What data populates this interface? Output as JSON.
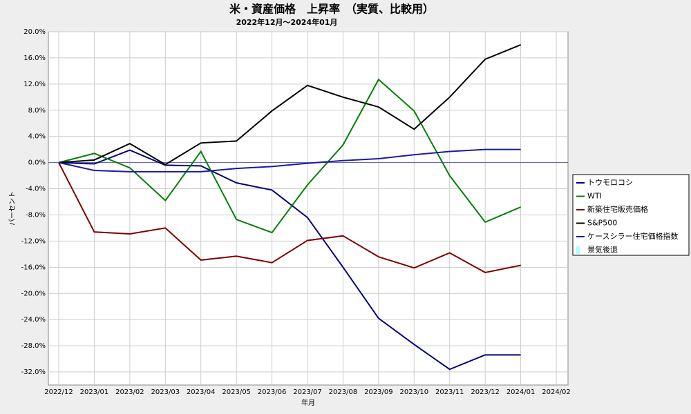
{
  "chart_data": {
    "type": "line",
    "title": "米・資産価格　上昇率　（実質、比較用）",
    "subtitle": "2022年12月～2024年01月",
    "x_label": "年月",
    "y_label": "パーセント",
    "categories": [
      "2022/12",
      "2023/01",
      "2023/02",
      "2023/03",
      "2023/04",
      "2023/05",
      "2023/06",
      "2023/07",
      "2023/08",
      "2023/09",
      "2023/10",
      "2023/11",
      "2023/12",
      "2024/01",
      "2024/02"
    ],
    "series": [
      {
        "name": "トウモロコシ",
        "color": "#000080",
        "values": [
          0,
          -0.2,
          1.9,
          -0.4,
          -0.5,
          -3.1,
          -4.2,
          -8.4,
          -16.0,
          -23.8,
          -27.8,
          -31.6,
          -29.4,
          -29.4,
          null
        ]
      },
      {
        "name": "WTI",
        "color": "#008000",
        "values": [
          0,
          1.4,
          -0.8,
          -5.8,
          1.7,
          -8.7,
          -10.7,
          -3.4,
          2.7,
          12.7,
          7.9,
          -2.0,
          -9.1,
          -6.8,
          null
        ]
      },
      {
        "name": "新築住宅販売価格",
        "color": "#800000",
        "values": [
          0,
          -10.6,
          -10.9,
          -10.0,
          -14.9,
          -14.3,
          -15.3,
          -11.9,
          -11.2,
          -14.4,
          -16.1,
          -13.8,
          -16.8,
          -15.7,
          null
        ]
      },
      {
        "name": "S&P500",
        "color": "#000000",
        "values": [
          0,
          0.4,
          2.9,
          -0.3,
          3.0,
          3.3,
          7.9,
          11.8,
          10.0,
          8.5,
          5.1,
          10.0,
          15.8,
          18.0,
          null
        ]
      },
      {
        "name": "ケースシラー住宅価格指数",
        "color": "#1a1aa6",
        "values": [
          0,
          -1.2,
          -1.4,
          -1.4,
          -1.4,
          -0.9,
          -0.6,
          -0.1,
          0.3,
          0.6,
          1.2,
          1.7,
          2.0,
          2.0,
          null
        ]
      },
      {
        "name": "景気後退",
        "color": "#aaffff",
        "values": [
          null,
          null,
          null,
          null,
          null,
          null,
          null,
          null,
          null,
          null,
          null,
          null,
          null,
          null,
          null
        ]
      }
    ],
    "ylim": [
      -34,
      20
    ],
    "yticks": [
      {
        "value": 20,
        "label": "20.0%"
      },
      {
        "value": 16,
        "label": "16.0%"
      },
      {
        "value": 12,
        "label": "12.0%"
      },
      {
        "value": 8,
        "label": "8.0%"
      },
      {
        "value": 4,
        "label": "4.0%"
      },
      {
        "value": 0,
        "label": "0.0%"
      },
      {
        "value": -4,
        "label": "-4.0%"
      },
      {
        "value": -8,
        "label": "-8.0%"
      },
      {
        "value": -12,
        "label": "-12.0%"
      },
      {
        "value": -16,
        "label": "-16.0%"
      },
      {
        "value": -20,
        "label": "-20.0%"
      },
      {
        "value": -24,
        "label": "-24.0%"
      },
      {
        "value": -28,
        "label": "-28.0%"
      },
      {
        "value": -32,
        "label": "-32.0%"
      }
    ],
    "grid": true,
    "legend": "right"
  }
}
